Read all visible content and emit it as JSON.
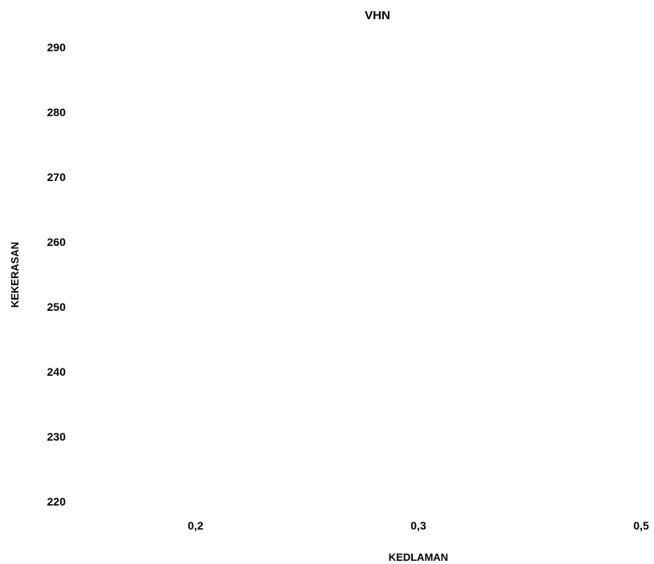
{
  "chart_data": {
    "type": "line",
    "title": "VHN",
    "xlabel": "KEDLAMAN",
    "ylabel": "KEKERASAN",
    "categories": [
      "0,2",
      "0,3",
      "0,5"
    ],
    "y_ticks": [
      "220",
      "230",
      "240",
      "250",
      "260",
      "270",
      "280",
      "290"
    ],
    "ylim": [
      220,
      290
    ],
    "series": [],
    "grid": false,
    "legend": "none"
  }
}
